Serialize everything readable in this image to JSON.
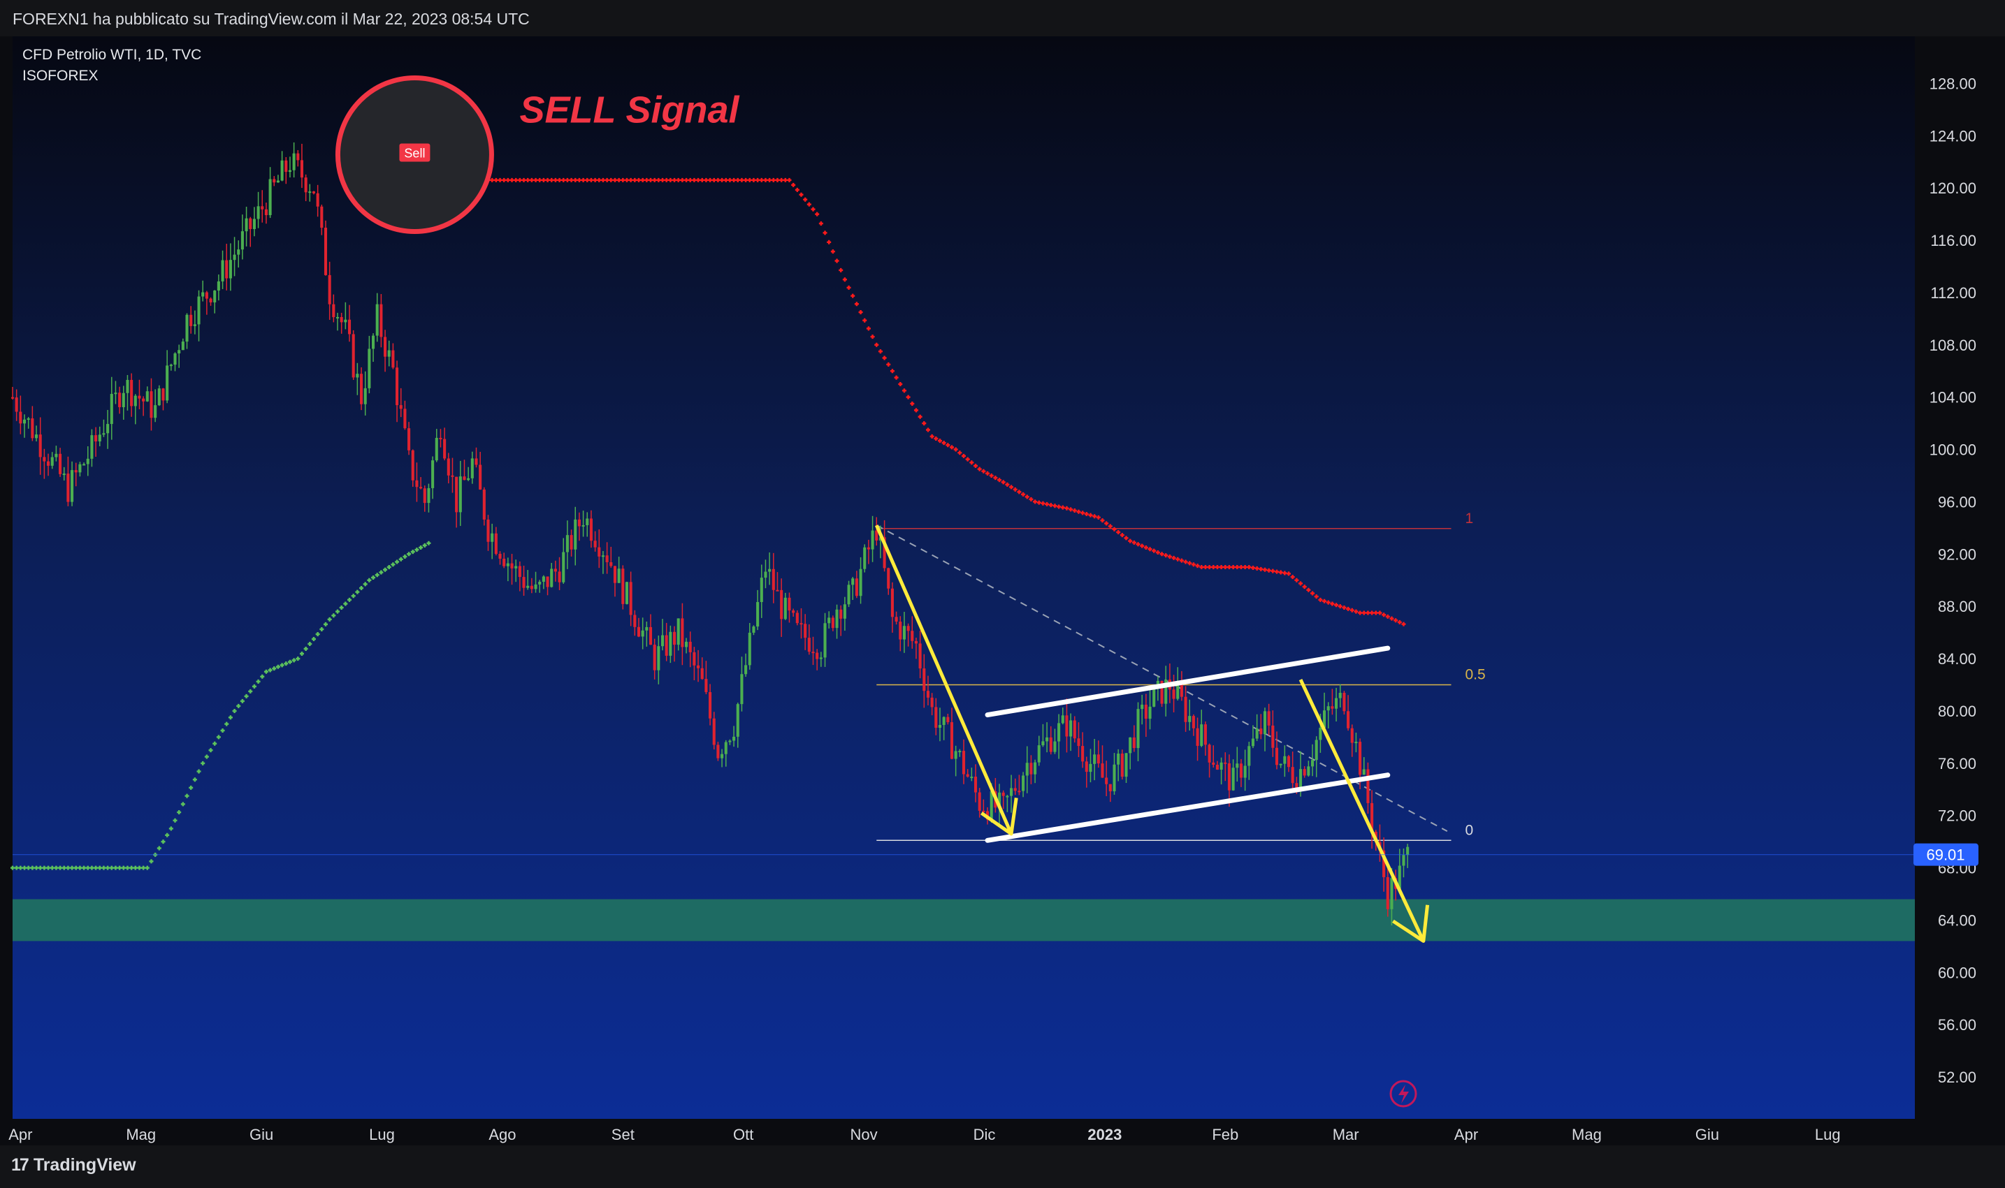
{
  "header": {
    "published_by": "FOREXN1 ha pubblicato su TradingView.com il Mar 22, 2023 08:54 UTC"
  },
  "symbol": {
    "title": "CFD Petrolio WTI, 1D, TVC",
    "indicator": "ISOFOREX"
  },
  "annotation": {
    "signal_text": "SELL Signal",
    "sell_label": "Sell"
  },
  "footer": {
    "brand": "TradingView",
    "logo_glyph": "17"
  },
  "colors": {
    "bull": "#4caf50",
    "bear": "#e0232f",
    "trail_bear": "#ff1a1a",
    "trail_bull": "#5cc25c",
    "arrow": "#ffeb3b",
    "zone": "#1e6b63",
    "signal_red": "#f23645"
  },
  "chart_data": {
    "type": "candlestick",
    "price_axis": {
      "ticks": [
        "128.00",
        "124.00",
        "120.00",
        "116.00",
        "112.00",
        "108.00",
        "104.00",
        "100.00",
        "96.00",
        "92.00",
        "88.00",
        "84.00",
        "80.00",
        "76.00",
        "72.00",
        "68.00",
        "64.00",
        "60.00",
        "56.00",
        "52.00"
      ],
      "range": [
        48.8,
        131.6
      ]
    },
    "time_axis": {
      "labels": [
        "Apr",
        "Mag",
        "Giu",
        "Lug",
        "Ago",
        "Set",
        "Ott",
        "Nov",
        "Dic",
        "2023",
        "Feb",
        "Mar",
        "Apr",
        "Mag",
        "Giu",
        "Lug"
      ],
      "bold": "2023",
      "day_range": [
        0,
        480
      ]
    },
    "last_price": "69.01",
    "fibonacci": {
      "levels": [
        {
          "label": "1",
          "price": 93.95
        },
        {
          "label": "0.5",
          "price": 82.0
        },
        {
          "label": "0",
          "price": 70.1
        }
      ],
      "day_range": [
        218,
        363
      ]
    },
    "support_zone": [
      62.4,
      65.6
    ],
    "price_path": [
      [
        0,
        104
      ],
      [
        8,
        100
      ],
      [
        14,
        97
      ],
      [
        20,
        100
      ],
      [
        28,
        105
      ],
      [
        36,
        103
      ],
      [
        44,
        110
      ],
      [
        52,
        113
      ],
      [
        58,
        116
      ],
      [
        64,
        119
      ],
      [
        70,
        122
      ],
      [
        76,
        120
      ],
      [
        80,
        112
      ],
      [
        84,
        109
      ],
      [
        88,
        104
      ],
      [
        92,
        110
      ],
      [
        96,
        106
      ],
      [
        100,
        99
      ],
      [
        104,
        96
      ],
      [
        108,
        102
      ],
      [
        112,
        96
      ],
      [
        116,
        99
      ],
      [
        120,
        94
      ],
      [
        126,
        91
      ],
      [
        132,
        89
      ],
      [
        138,
        91
      ],
      [
        144,
        95
      ],
      [
        150,
        92
      ],
      [
        156,
        88
      ],
      [
        162,
        84
      ],
      [
        168,
        86
      ],
      [
        174,
        82
      ],
      [
        178,
        77
      ],
      [
        182,
        79
      ],
      [
        186,
        85
      ],
      [
        190,
        91
      ],
      [
        194,
        88
      ],
      [
        198,
        86
      ],
      [
        204,
        85
      ],
      [
        208,
        88
      ],
      [
        212,
        89
      ],
      [
        218,
        94
      ],
      [
        222,
        87
      ],
      [
        228,
        85
      ],
      [
        232,
        80
      ],
      [
        238,
        77
      ],
      [
        244,
        73
      ],
      [
        250,
        72.5
      ],
      [
        256,
        76
      ],
      [
        262,
        78
      ],
      [
        266,
        79
      ],
      [
        272,
        76
      ],
      [
        276,
        74.5
      ],
      [
        280,
        76
      ],
      [
        284,
        79
      ],
      [
        288,
        81
      ],
      [
        292,
        82
      ],
      [
        296,
        80
      ],
      [
        300,
        78
      ],
      [
        304,
        76
      ],
      [
        308,
        74.5
      ],
      [
        312,
        77
      ],
      [
        316,
        79
      ],
      [
        320,
        76
      ],
      [
        324,
        75
      ],
      [
        328,
        77
      ],
      [
        332,
        80
      ],
      [
        336,
        81
      ],
      [
        340,
        76
      ],
      [
        344,
        70
      ],
      [
        347,
        66
      ],
      [
        350,
        67.5
      ],
      [
        352,
        69.01
      ]
    ],
    "trailing_stop_bear": [
      [
        105,
        121.8
      ],
      [
        110,
        120.6
      ],
      [
        120,
        120.6
      ],
      [
        130,
        120.6
      ],
      [
        150,
        120.6
      ],
      [
        170,
        120.6
      ],
      [
        196,
        120.6
      ],
      [
        203,
        118
      ],
      [
        210,
        113
      ],
      [
        218,
        108
      ],
      [
        226,
        104
      ],
      [
        232,
        101
      ],
      [
        238,
        100
      ],
      [
        244,
        98.5
      ],
      [
        250,
        97.5
      ],
      [
        258,
        96
      ],
      [
        266,
        95.5
      ],
      [
        274,
        94.8
      ],
      [
        282,
        93
      ],
      [
        290,
        92
      ],
      [
        300,
        91
      ],
      [
        312,
        91
      ],
      [
        322,
        90.5
      ],
      [
        330,
        88.5
      ],
      [
        340,
        87.5
      ],
      [
        345,
        87.5
      ],
      [
        352,
        86.5
      ]
    ],
    "trailing_stop_bull": [
      [
        0,
        68
      ],
      [
        10,
        68
      ],
      [
        20,
        68
      ],
      [
        34,
        68
      ],
      [
        40,
        71
      ],
      [
        48,
        76
      ],
      [
        56,
        80
      ],
      [
        64,
        83
      ],
      [
        72,
        84
      ],
      [
        80,
        87
      ],
      [
        90,
        90
      ],
      [
        100,
        92
      ],
      [
        106,
        93
      ]
    ],
    "channel_lines": [
      {
        "from": [
          246,
          79.7
        ],
        "to": [
          347,
          84.8
        ]
      },
      {
        "from": [
          246,
          70.1
        ],
        "to": [
          347,
          75.1
        ]
      }
    ],
    "dashed_trend": {
      "from": [
        218,
        94.2
      ],
      "to": [
        362,
        70.8
      ]
    },
    "arrows": [
      {
        "from": [
          218,
          94.2
        ],
        "to": [
          252,
          70.6
        ]
      },
      {
        "from": [
          325,
          82.4
        ],
        "to": [
          356,
          62.4
        ]
      }
    ]
  }
}
